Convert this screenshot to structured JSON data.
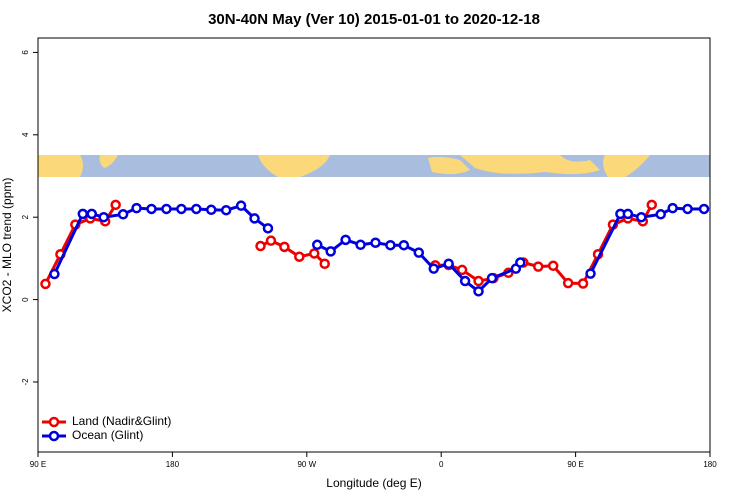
{
  "chart_data": {
    "type": "line",
    "title": "30N-40N May (Ver 10)   2015-01-01 to 2020-12-18",
    "x_label": "Longitude (deg E)",
    "y_label": "XCO2 - MLO trend (ppm)",
    "xlim": [
      90,
      540
    ],
    "xticks": [
      {
        "value": 90,
        "label": "90 E"
      },
      {
        "value": 180,
        "label": "180"
      },
      {
        "value": 270,
        "label": "90 W"
      },
      {
        "value": 360,
        "label": "0"
      },
      {
        "value": 450,
        "label": "90 E"
      },
      {
        "value": 540,
        "label": "180"
      }
    ],
    "ylim": [
      -3.7,
      6.35
    ],
    "yticks": [
      -2,
      0,
      2,
      4,
      6
    ],
    "legend": "bottom-left",
    "series": [
      {
        "name": "Land (Nadir&Glint)",
        "color": "#ee0000",
        "x": [
          95,
          105,
          115,
          125,
          135,
          142,
          190,
          239,
          246,
          255,
          265,
          275,
          282,
          320,
          356,
          365,
          374,
          385,
          395,
          405,
          415,
          425,
          435,
          445,
          455,
          465,
          475,
          485,
          495,
          501
        ],
        "values": [
          0.38,
          1.1,
          1.82,
          1.97,
          1.9,
          2.3,
          null,
          1.3,
          1.43,
          1.28,
          1.04,
          1.12,
          0.87,
          null,
          0.83,
          0.84,
          0.72,
          0.45,
          0.52,
          0.65,
          0.9,
          0.8,
          0.82,
          0.4,
          0.39,
          1.1,
          1.82,
          1.97,
          1.9,
          2.3
        ]
      },
      {
        "name": "Ocean (Glint)",
        "color": "#0000dd",
        "x": [
          101,
          120,
          126,
          134,
          147,
          156,
          166,
          176,
          186,
          196,
          206,
          216,
          226,
          235,
          244,
          260,
          277,
          286,
          296,
          306,
          316,
          326,
          335,
          345,
          355,
          365,
          376,
          385,
          394,
          410,
          413,
          440,
          460,
          480,
          485,
          494,
          507,
          515,
          525,
          536
        ],
        "values": [
          0.62,
          2.08,
          2.08,
          2.0,
          2.07,
          2.22,
          2.2,
          2.2,
          2.2,
          2.2,
          2.18,
          2.17,
          2.28,
          1.97,
          1.73,
          null,
          1.33,
          1.17,
          1.45,
          1.33,
          1.38,
          1.32,
          1.32,
          1.14,
          0.75,
          0.87,
          0.45,
          0.2,
          0.52,
          0.75,
          0.9,
          null,
          0.63,
          2.08,
          2.08,
          2.0,
          2.07,
          2.22,
          2.2,
          2.2
        ]
      }
    ]
  }
}
